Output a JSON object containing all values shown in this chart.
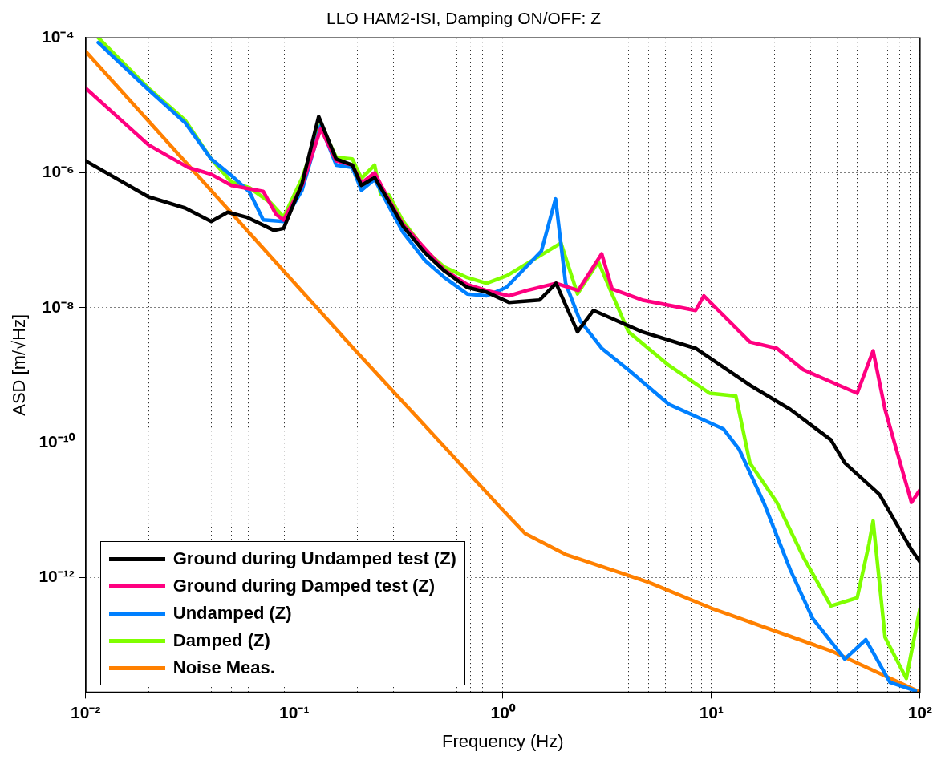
{
  "chart_data": {
    "type": "line",
    "title": "LLO HAM2-ISI, Damping ON/OFF: Z",
    "xlabel": "Frequency (Hz)",
    "ylabel": "ASD [m/√Hz]",
    "log": "xy",
    "grid": true,
    "legend": "bottom left",
    "marker": "none",
    "line_style": "solid",
    "xlim": [
      0.01,
      100
    ],
    "ylim": [
      2e-14,
      0.0001
    ],
    "xticks": [
      {
        "value": 0.01,
        "label": "10⁻²"
      },
      {
        "value": 0.02,
        "label": null
      },
      {
        "value": 0.03,
        "label": null
      },
      {
        "value": 0.04,
        "label": null
      },
      {
        "value": 0.05,
        "label": null
      },
      {
        "value": 0.06,
        "label": null
      },
      {
        "value": 0.07,
        "label": null
      },
      {
        "value": 0.08,
        "label": null
      },
      {
        "value": 0.09,
        "label": null
      },
      {
        "value": 0.1,
        "label": "10⁻¹"
      },
      {
        "value": 0.2,
        "label": null
      },
      {
        "value": 0.3,
        "label": null
      },
      {
        "value": 0.4,
        "label": null
      },
      {
        "value": 0.5,
        "label": null
      },
      {
        "value": 0.6,
        "label": null
      },
      {
        "value": 0.7,
        "label": null
      },
      {
        "value": 0.8,
        "label": null
      },
      {
        "value": 0.9,
        "label": null
      },
      {
        "value": 1,
        "label": "10⁰"
      },
      {
        "value": 2,
        "label": null
      },
      {
        "value": 3,
        "label": null
      },
      {
        "value": 4,
        "label": null
      },
      {
        "value": 5,
        "label": null
      },
      {
        "value": 6,
        "label": null
      },
      {
        "value": 7,
        "label": null
      },
      {
        "value": 8,
        "label": null
      },
      {
        "value": 9,
        "label": null
      },
      {
        "value": 10,
        "label": "10¹"
      },
      {
        "value": 20,
        "label": null
      },
      {
        "value": 30,
        "label": null
      },
      {
        "value": 40,
        "label": null
      },
      {
        "value": 50,
        "label": null
      },
      {
        "value": 60,
        "label": null
      },
      {
        "value": 70,
        "label": null
      },
      {
        "value": 80,
        "label": null
      },
      {
        "value": 90,
        "label": null
      },
      {
        "value": 100,
        "label": "10²"
      }
    ],
    "yticks": [
      {
        "value": 1e-12,
        "label": "10⁻¹²"
      },
      {
        "value": 1e-10,
        "label": "10⁻¹⁰"
      },
      {
        "value": 1e-08,
        "label": "10⁻⁸"
      },
      {
        "value": 1e-06,
        "label": "10⁻⁶"
      },
      {
        "value": 0.0001,
        "label": "10⁻⁴"
      }
    ],
    "series": [
      {
        "name": "Ground during Undamped test (Z)",
        "color": "#000000",
        "x": [
          0.01,
          0.02,
          0.03,
          0.04,
          0.048,
          0.059,
          0.08,
          0.089,
          0.109,
          0.131,
          0.159,
          0.19,
          0.21,
          0.243,
          0.284,
          0.333,
          0.424,
          0.525,
          0.675,
          0.836,
          1.07,
          1.5,
          1.8,
          2.28,
          2.72,
          4.65,
          8.4,
          15.3,
          23.9,
          37.4,
          43.6,
          64,
          91,
          100
        ],
        "values": [
          1.5e-06,
          4.4e-07,
          3e-07,
          1.9e-07,
          2.6e-07,
          2.2e-07,
          1.4e-07,
          1.5e-07,
          6.9e-07,
          6.8e-06,
          1.6e-06,
          1.3e-06,
          6.5e-07,
          8.5e-07,
          3.8e-07,
          1.6e-07,
          6.5e-08,
          3.5e-08,
          2e-08,
          1.7e-08,
          1.2e-08,
          1.3e-08,
          2.3e-08,
          4.4e-09,
          9.1e-09,
          4.4e-09,
          2.5e-09,
          7.1e-10,
          3.1e-10,
          1.1e-10,
          5e-11,
          1.7e-11,
          2.6e-12,
          1.7e-12
        ]
      },
      {
        "name": "Ground during Damped test (Z)",
        "color": "#ff0080",
        "x": [
          0.01,
          0.02,
          0.031,
          0.04,
          0.05,
          0.071,
          0.082,
          0.089,
          0.109,
          0.134,
          0.159,
          0.19,
          0.21,
          0.243,
          0.284,
          0.333,
          0.424,
          0.525,
          0.675,
          0.836,
          1.07,
          1.3,
          1.8,
          2.3,
          2.98,
          3.34,
          4.65,
          8.4,
          9.2,
          15.3,
          20.6,
          27.6,
          50,
          59.6,
          68,
          91,
          100
        ],
        "values": [
          1.8e-05,
          2.6e-06,
          1.2e-06,
          9.5e-07,
          6.5e-07,
          5.3e-07,
          2.4e-07,
          2e-07,
          6.5e-07,
          4.5e-06,
          1.5e-06,
          1.3e-06,
          7e-07,
          1e-06,
          4e-07,
          1.7e-07,
          7.5e-08,
          3.6e-08,
          2.2e-08,
          1.8e-08,
          1.5e-08,
          1.8e-08,
          2.3e-08,
          1.8e-08,
          6.3e-08,
          1.9e-08,
          1.3e-08,
          9.1e-09,
          1.5e-08,
          3.1e-09,
          2.5e-09,
          1.2e-09,
          5.4e-10,
          2.3e-09,
          3.1e-10,
          1.3e-11,
          2e-11
        ]
      },
      {
        "name": "Undamped  (Z)",
        "color": "#0080ff",
        "x": [
          0.0115,
          0.02,
          0.03,
          0.04,
          0.05,
          0.061,
          0.071,
          0.089,
          0.109,
          0.134,
          0.159,
          0.19,
          0.21,
          0.243,
          0.284,
          0.333,
          0.424,
          0.525,
          0.675,
          0.836,
          1.04,
          1.53,
          1.79,
          2.0,
          2.34,
          2.98,
          4.0,
          6.25,
          11.4,
          13.6,
          17.8,
          23.9,
          30.5,
          43.6,
          55,
          71.8,
          95
        ],
        "values": [
          8.5e-05,
          1.7e-05,
          5.5e-06,
          1.6e-06,
          9.1e-07,
          5.2e-07,
          2e-07,
          1.9e-07,
          5.5e-07,
          5e-06,
          1.3e-06,
          1.2e-06,
          5.5e-07,
          8e-07,
          3.2e-07,
          1.3e-07,
          5e-08,
          2.8e-08,
          1.6e-08,
          1.5e-08,
          2e-08,
          6.9e-08,
          4.1e-07,
          2.3e-08,
          6.5e-09,
          2.5e-09,
          1.2e-09,
          3.7e-10,
          1.6e-10,
          7.9e-11,
          1.3e-11,
          1.3e-12,
          2.5e-13,
          6.2e-14,
          1.2e-13,
          2.8e-14,
          2.1e-14
        ]
      },
      {
        "name": "Damped  (Z)",
        "color": "#80ff00",
        "x": [
          0.0115,
          0.02,
          0.03,
          0.04,
          0.05,
          0.061,
          0.077,
          0.089,
          0.109,
          0.134,
          0.159,
          0.19,
          0.21,
          0.243,
          0.26,
          0.284,
          0.333,
          0.424,
          0.525,
          0.675,
          0.836,
          1.05,
          1.9,
          2.28,
          2.87,
          3.26,
          4.0,
          6.25,
          9.8,
          13.1,
          15.3,
          20.6,
          27.6,
          37.4,
          50,
          57,
          59.6,
          68,
          86,
          100
        ],
        "values": [
          0.0001,
          1.8e-05,
          6e-06,
          1.6e-06,
          7.3e-07,
          6e-07,
          3.6e-07,
          2.2e-07,
          8.3e-07,
          5.2e-06,
          1.7e-06,
          1.6e-06,
          8.3e-07,
          1.3e-06,
          4.7e-07,
          4.7e-07,
          1.9e-07,
          7.1e-08,
          4e-08,
          2.8e-08,
          2.3e-08,
          3e-08,
          9.1e-08,
          1.6e-08,
          4.8e-08,
          1.9e-08,
          4.4e-09,
          1.4e-09,
          5.4e-10,
          4.9e-10,
          5e-11,
          1.3e-11,
          2e-12,
          3.8e-13,
          5e-13,
          3.2e-12,
          6.9e-12,
          1.3e-13,
          3.2e-14,
          3.5e-13
        ]
      },
      {
        "name": "Noise  Meas.",
        "color": "#ff8000",
        "x": [
          0.01,
          0.19,
          1,
          1.28,
          2,
          5,
          10,
          37.4,
          100
        ],
        "values": [
          6.3e-05,
          2.6e-09,
          1e-11,
          4.5e-12,
          2.2e-12,
          8.5e-13,
          3.5e-13,
          8.2e-14,
          2e-14
        ]
      }
    ]
  }
}
